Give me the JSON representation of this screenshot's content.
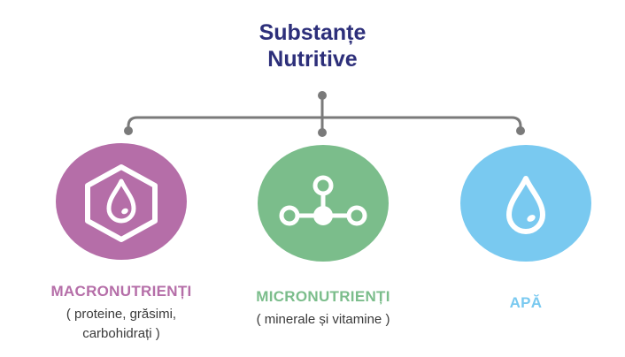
{
  "title": {
    "line1": "Substanțe",
    "line2": "Nutritive"
  },
  "branches": [
    {
      "label": "MACRONUTRIENȚI",
      "sub_line1": "( proteine, grăsimi,",
      "sub_line2": "carbohidrați )",
      "color": "#b56ea8",
      "icon": "hexagon-drop-icon"
    },
    {
      "label": "MICRONUTRIENȚI",
      "sub_line1": "( minerale și vitamine )",
      "color": "#7bbd8b",
      "icon": "molecule-icon"
    },
    {
      "label": "APĂ",
      "color": "#79c9f0",
      "icon": "water-drop-icon"
    }
  ],
  "colors": {
    "title": "#2d2f7a",
    "connector": "#7a7a7a"
  }
}
